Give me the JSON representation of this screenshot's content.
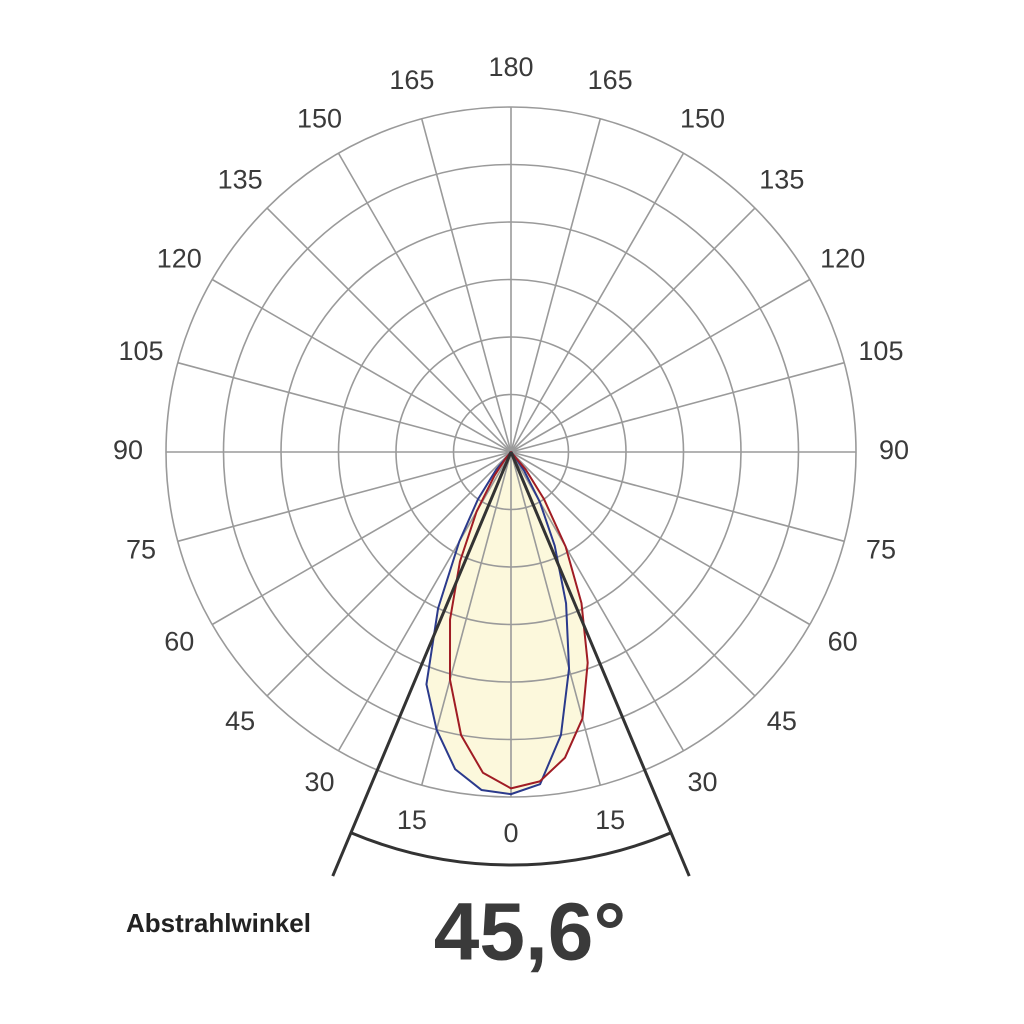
{
  "chart_data": {
    "type": "polar",
    "angle_ticks": [
      0,
      15,
      30,
      45,
      60,
      75,
      90,
      105,
      120,
      135,
      150,
      165,
      180
    ],
    "rlim": [
      0,
      6
    ],
    "rticks": [
      1,
      2,
      3,
      4,
      5,
      6
    ],
    "x": [
      -40,
      -35,
      -30,
      -25,
      -20,
      -15,
      -10,
      -5,
      0,
      5,
      10,
      15,
      20,
      25,
      30,
      35,
      40
    ],
    "series": [
      {
        "color": "#2b3a8c",
        "values": [
          0.4,
          1.0,
          1.8,
          3.0,
          4.3,
          5.0,
          5.6,
          5.9,
          5.95,
          5.8,
          5.0,
          3.9,
          2.8,
          1.8,
          1.0,
          0.4,
          0.1
        ]
      },
      {
        "color": "#a01c24",
        "values": [
          0.15,
          0.5,
          1.2,
          2.1,
          3.1,
          4.1,
          5.0,
          5.6,
          5.85,
          5.75,
          5.4,
          4.8,
          3.9,
          2.9,
          1.9,
          1.0,
          0.4
        ]
      }
    ],
    "fill_color": "#fcf8dc",
    "beam_angle": {
      "value": 45.6,
      "label": "45,6°"
    },
    "beam_label": "Abstrahlwinkel"
  }
}
